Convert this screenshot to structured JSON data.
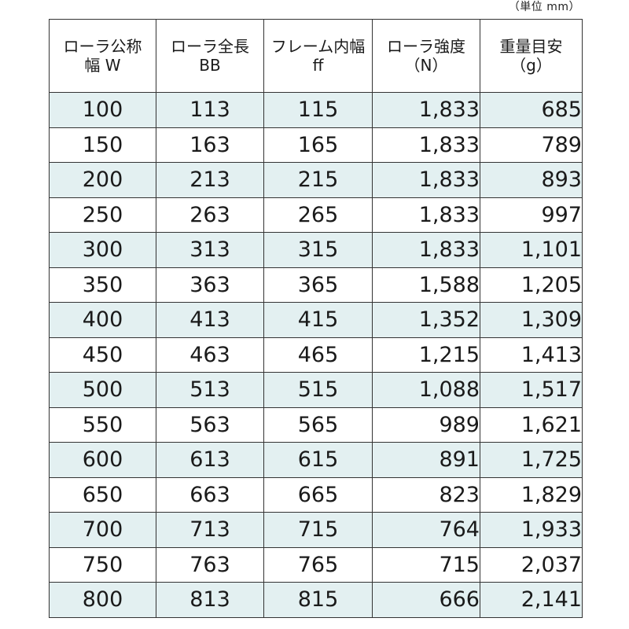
{
  "unit_note": "（単位 mm）",
  "headers": [
    {
      "line1": "ローラ公称",
      "line2": "幅 W"
    },
    {
      "line1": "ローラ全長",
      "line2": "BB"
    },
    {
      "line1": "フレーム内幅",
      "line2": "ff"
    },
    {
      "line1": "ローラ強度",
      "line2": "（N）"
    },
    {
      "line1": "重量目安",
      "line2": "（g）"
    }
  ],
  "rows": [
    [
      "100",
      "113",
      "115",
      "1,833",
      "685"
    ],
    [
      "150",
      "163",
      "165",
      "1,833",
      "789"
    ],
    [
      "200",
      "213",
      "215",
      "1,833",
      "893"
    ],
    [
      "250",
      "263",
      "265",
      "1,833",
      "997"
    ],
    [
      "300",
      "313",
      "315",
      "1,833",
      "1,101"
    ],
    [
      "350",
      "363",
      "365",
      "1,588",
      "1,205"
    ],
    [
      "400",
      "413",
      "415",
      "1,352",
      "1,309"
    ],
    [
      "450",
      "463",
      "465",
      "1,215",
      "1,413"
    ],
    [
      "500",
      "513",
      "515",
      "1,088",
      "1,517"
    ],
    [
      "550",
      "563",
      "565",
      "989",
      "1,621"
    ],
    [
      "600",
      "613",
      "615",
      "891",
      "1,725"
    ],
    [
      "650",
      "663",
      "665",
      "823",
      "1,829"
    ],
    [
      "700",
      "713",
      "715",
      "764",
      "1,933"
    ],
    [
      "750",
      "763",
      "765",
      "715",
      "2,037"
    ],
    [
      "800",
      "813",
      "815",
      "666",
      "2,141"
    ]
  ],
  "colors": {
    "stripe": "#e3f0f1",
    "border": "#333333"
  }
}
